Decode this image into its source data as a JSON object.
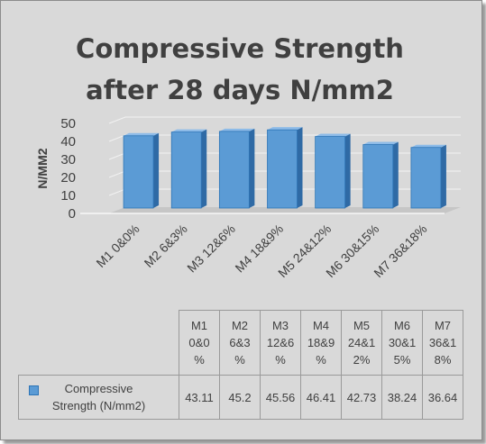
{
  "chart_data": {
    "type": "bar",
    "title": "Compressive Strength after  28 days N/mm2",
    "ylabel": "N/MM2",
    "xlabel": "",
    "ylim": [
      0,
      50
    ],
    "yticks": [
      0,
      10,
      20,
      30,
      40,
      50
    ],
    "grid": true,
    "legend": "data table",
    "color": "#5b9bd5",
    "categories": [
      "M1 0&0%",
      "M2 6&3%",
      "M3 12&6%",
      "M4 18&9%",
      "M5 24&12%",
      "M6 30&15%",
      "M7 36&18%"
    ],
    "table_headers": [
      "M1\n0&0\n%",
      "M2\n6&3\n%",
      "M3\n12&6\n%",
      "M4\n18&9\n%",
      "M5\n24&1\n2%",
      "M6\n30&1\n5%",
      "M7\n36&1\n8%"
    ],
    "series": [
      {
        "name": "Compressive\nStrength  (N/mm2)",
        "values": [
          43.11,
          45.2,
          45.56,
          46.41,
          42.73,
          38.24,
          36.64
        ],
        "labels": [
          "43.11",
          "45.2",
          "45.56",
          "46.41",
          "42.73",
          "38.24",
          "36.64"
        ]
      }
    ]
  }
}
